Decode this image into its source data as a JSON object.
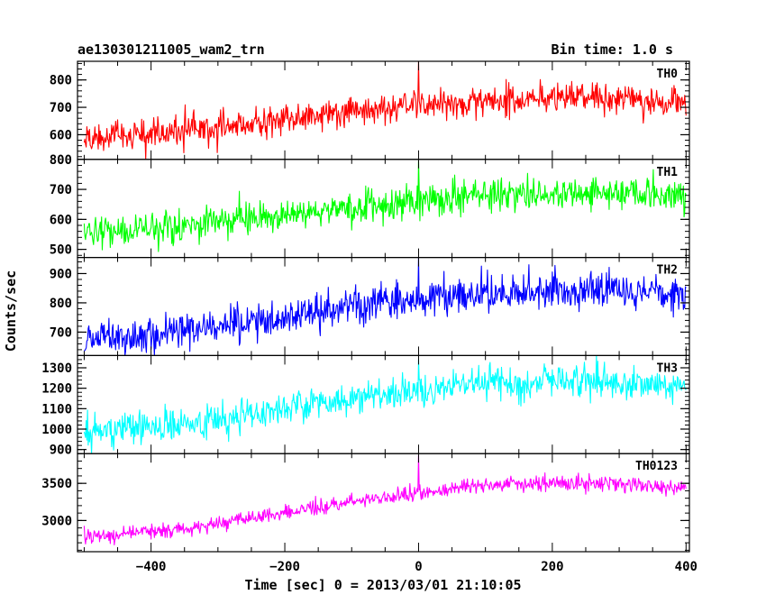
{
  "header": {
    "title": "ae130301211005_wam2_trn",
    "bin_time": "Bin time: 1.0 s"
  },
  "axes": {
    "xlabel": "Time [sec] 0 = 2013/03/01 21:10:05",
    "ylabel": "Counts/sec"
  },
  "chart_data": {
    "type": "line",
    "x_range": [
      -510,
      405
    ],
    "x_ticks": [
      -400,
      -200,
      0,
      200,
      400
    ],
    "x_tick_labels": [
      "−400",
      "−200",
      "0",
      "200",
      "400"
    ],
    "data_x_range": [
      -500,
      400
    ],
    "bin_time_s": 1.0,
    "panels": [
      {
        "name": "TH0",
        "color": "#ff0000",
        "ylim": [
          510,
          868
        ],
        "yticks": [
          600,
          700,
          800
        ],
        "ytick_labels": [
          "600",
          "700",
          "800"
        ],
        "trend": [
          {
            "x": -500,
            "y": 585
          },
          {
            "x": -300,
            "y": 625
          },
          {
            "x": -100,
            "y": 690
          },
          {
            "x": 100,
            "y": 725
          },
          {
            "x": 250,
            "y": 735
          },
          {
            "x": 400,
            "y": 720
          }
        ],
        "noise": 28,
        "spike": {
          "x": 0,
          "y": 868
        }
      },
      {
        "name": "TH1",
        "color": "#00ff00",
        "ylim": [
          473,
          800
        ],
        "yticks": [
          500,
          600,
          700,
          800
        ],
        "ytick_labels": [
          "500",
          "600",
          "700",
          "800"
        ],
        "trend": [
          {
            "x": -500,
            "y": 550
          },
          {
            "x": -300,
            "y": 590
          },
          {
            "x": -100,
            "y": 640
          },
          {
            "x": 100,
            "y": 680
          },
          {
            "x": 250,
            "y": 690
          },
          {
            "x": 400,
            "y": 680
          }
        ],
        "noise": 26,
        "spike": {
          "x": 0,
          "y": 795
        }
      },
      {
        "name": "TH2",
        "color": "#0000ff",
        "ylim": [
          620,
          955
        ],
        "yticks": [
          700,
          800,
          900
        ],
        "ytick_labels": [
          "700",
          "800",
          "900"
        ],
        "trend": [
          {
            "x": -500,
            "y": 670
          },
          {
            "x": -300,
            "y": 715
          },
          {
            "x": -100,
            "y": 790
          },
          {
            "x": 100,
            "y": 835
          },
          {
            "x": 250,
            "y": 845
          },
          {
            "x": 400,
            "y": 830
          }
        ],
        "noise": 30,
        "spike": {
          "x": 0,
          "y": 955
        }
      },
      {
        "name": "TH3",
        "color": "#00ffff",
        "ylim": [
          880,
          1360
        ],
        "yticks": [
          900,
          1000,
          1100,
          1200,
          1300
        ],
        "ytick_labels": [
          "900",
          "1000",
          "1100",
          "1200",
          "1300"
        ],
        "trend": [
          {
            "x": -500,
            "y": 980
          },
          {
            "x": -300,
            "y": 1045
          },
          {
            "x": -100,
            "y": 1150
          },
          {
            "x": 100,
            "y": 1220
          },
          {
            "x": 250,
            "y": 1235
          },
          {
            "x": 400,
            "y": 1200
          }
        ],
        "noise": 40,
        "spike": {
          "x": 0,
          "y": 1340
        }
      },
      {
        "name": "TH0123",
        "color": "#ff00ff",
        "ylim": [
          2580,
          3900
        ],
        "yticks": [
          3000,
          3500
        ],
        "ytick_labels": [
          "3000",
          "3500"
        ],
        "trend": [
          {
            "x": -500,
            "y": 2770
          },
          {
            "x": -300,
            "y": 2950
          },
          {
            "x": -100,
            "y": 3260
          },
          {
            "x": 100,
            "y": 3470
          },
          {
            "x": 250,
            "y": 3520
          },
          {
            "x": 400,
            "y": 3440
          }
        ],
        "noise": 50,
        "spike": {
          "x": 0,
          "y": 3880
        }
      }
    ]
  }
}
